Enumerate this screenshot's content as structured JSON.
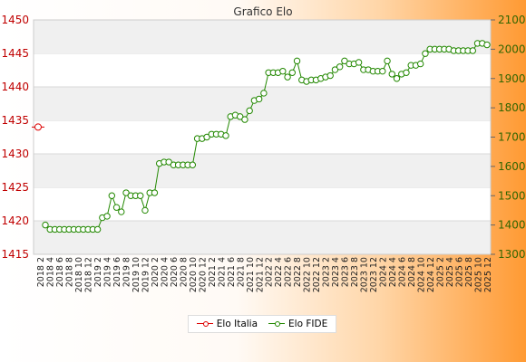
{
  "chart_data": {
    "type": "line",
    "title": "Grafico Elo",
    "left_axis": {
      "ylim": [
        1415,
        1450
      ],
      "ticks": [
        1415,
        1420,
        1425,
        1430,
        1435,
        1440,
        1445,
        1450
      ],
      "color": "#c00000"
    },
    "right_axis": {
      "ylim": [
        1300,
        2100
      ],
      "ticks": [
        1300,
        1400,
        1500,
        1600,
        1700,
        1800,
        1900,
        2000,
        2100
      ],
      "color": "#336600"
    },
    "grid": "horizontal",
    "legend_position": "bottom-center",
    "x_labels": [
      "2018 2",
      "2018 4",
      "2018 6",
      "2018 8",
      "2018 10",
      "2018 12",
      "2019 2",
      "2019 4",
      "2019 6",
      "2019 8",
      "2019 10",
      "2019 12",
      "2020 2",
      "2020 4",
      "2020 6",
      "2020 8",
      "2020 10",
      "2020 12",
      "2021 2",
      "2021 4",
      "2021 6",
      "2021 8",
      "2021 10",
      "2021 12",
      "2022 2",
      "2022 4",
      "2022 6",
      "2022 8",
      "2022 10",
      "2022 12",
      "2023 2",
      "2023 4",
      "2023 6",
      "2023 8",
      "2023 10",
      "2023 12",
      "2024 2",
      "2024 4",
      "2024 6",
      "2024 8",
      "2024 10",
      "2024 12",
      "2025 2",
      "2025 4",
      "2025 6",
      "2025 8",
      "2025 10",
      "2025 12"
    ],
    "series": [
      {
        "name": "Elo Italia",
        "axis": "left",
        "color": "#dd0000",
        "points": [
          {
            "i": 0,
            "y": 1434
          }
        ]
      },
      {
        "name": "Elo FIDE",
        "axis": "right",
        "color": "#228800",
        "values": [
          1400,
          1385,
          1385,
          1385,
          1385,
          1385,
          1385,
          1385,
          1385,
          1385,
          1385,
          1385,
          1425,
          1430,
          1500,
          1460,
          1445,
          1510,
          1500,
          1500,
          1500,
          1450,
          1510,
          1510,
          1610,
          1615,
          1615,
          1605,
          1605,
          1605,
          1605,
          1605,
          1695,
          1695,
          1700,
          1710,
          1710,
          1710,
          1705,
          1770,
          1775,
          1770,
          1760,
          1790,
          1825,
          1830,
          1850,
          1920,
          1920,
          1920,
          1925,
          1905,
          1920,
          1960,
          1895,
          1890,
          1895,
          1895,
          1900,
          1905,
          1910,
          1930,
          1940,
          1960,
          1950,
          1950,
          1955,
          1930,
          1930,
          1925,
          1925,
          1925,
          1960,
          1915,
          1900,
          1915,
          1920,
          1945,
          1945,
          1950,
          1985,
          2000,
          2000,
          2000,
          2000,
          2000,
          1995,
          1995,
          1995,
          1995,
          1995,
          2020,
          2020,
          2015
        ]
      }
    ]
  }
}
